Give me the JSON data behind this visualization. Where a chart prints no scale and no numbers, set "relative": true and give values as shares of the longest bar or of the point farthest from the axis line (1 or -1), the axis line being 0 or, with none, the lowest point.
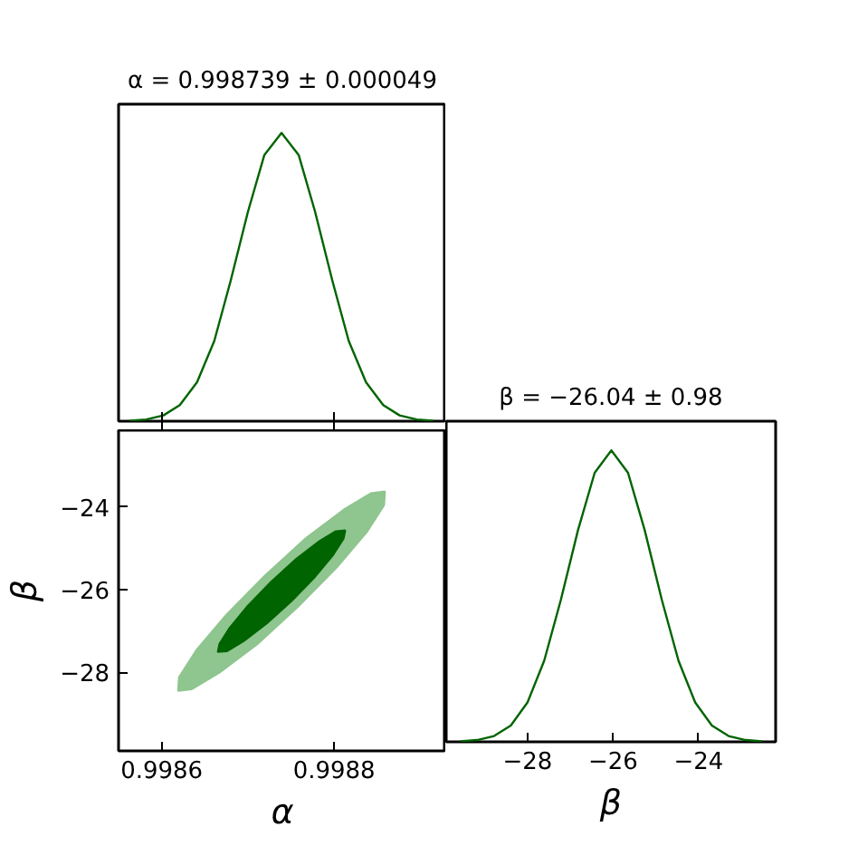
{
  "chart_data": [
    {
      "type": "line",
      "relative": true,
      "title": "α = 0.998739 ± 0.000049",
      "x": [
        0.998563,
        0.998582,
        0.998602,
        0.998621,
        0.998641,
        0.998661,
        0.99868,
        0.9987,
        0.998719,
        0.998739,
        0.998759,
        0.998778,
        0.998798,
        0.998817,
        0.998837,
        0.998857,
        0.998876,
        0.998896,
        0.998915
      ],
      "series": [
        {
          "color": "#006400",
          "values": [
            0.002,
            0.006,
            0.02,
            0.056,
            0.135,
            0.278,
            0.487,
            0.726,
            0.923,
            1,
            0.923,
            0.726,
            0.487,
            0.278,
            0.135,
            0.056,
            0.02,
            0.006,
            0.002
          ]
        }
      ],
      "xlim": [
        0.99855,
        0.99893
      ],
      "xticks": [
        0.9986,
        0.9988
      ],
      "tick_labels": false
    },
    {
      "type": "area",
      "xlabel": "α",
      "ylabel": "β",
      "series": [
        {
          "color": "#8fc58f",
          "x": [
            0.998859,
            0.998858,
            0.998838,
            0.998803,
            0.998758,
            0.998711,
            0.998667,
            0.998635,
            0.998619,
            0.99862,
            0.99864,
            0.998675,
            0.99872,
            0.998767,
            0.998811,
            0.998843
          ],
          "values": [
            -23.63,
            -23.96,
            -24.61,
            -25.47,
            -26.42,
            -27.32,
            -28.01,
            -28.41,
            -28.45,
            -28.12,
            -27.47,
            -26.61,
            -25.66,
            -24.76,
            -24.07,
            -23.67
          ]
        },
        {
          "color": "#006400",
          "x": [
            0.998813,
            0.998811,
            0.998799,
            0.998778,
            0.998751,
            0.998722,
            0.998695,
            0.998676,
            0.998665,
            0.998667,
            0.998679,
            0.9987,
            0.998727,
            0.998756,
            0.998783,
            0.998802
          ],
          "values": [
            -24.57,
            -24.77,
            -25.16,
            -25.69,
            -26.27,
            -26.82,
            -27.25,
            -27.49,
            -27.51,
            -27.31,
            -26.92,
            -26.39,
            -25.81,
            -25.26,
            -24.83,
            -24.59
          ]
        }
      ],
      "xlim": [
        0.99855,
        0.99893
      ],
      "xticks": [
        0.9986,
        0.9988
      ],
      "ylim": [
        -29.9,
        -22.15
      ],
      "yticks": [
        -28,
        -26,
        -24
      ]
    },
    {
      "type": "line",
      "relative": true,
      "title": "β = −26.04 ± 0.98",
      "xlabel": "β",
      "x": [
        -29.57,
        -29.18,
        -28.78,
        -28.39,
        -28.0,
        -27.61,
        -27.22,
        -26.82,
        -26.43,
        -26.04,
        -25.65,
        -25.26,
        -24.86,
        -24.47,
        -24.08,
        -23.69,
        -23.3,
        -22.9,
        -22.51
      ],
      "series": [
        {
          "color": "#006400",
          "values": [
            0.002,
            0.006,
            0.02,
            0.056,
            0.135,
            0.278,
            0.487,
            0.726,
            0.923,
            1,
            0.923,
            0.726,
            0.487,
            0.278,
            0.135,
            0.056,
            0.02,
            0.006,
            0.002
          ]
        }
      ],
      "xlim": [
        -29.9,
        -22.2
      ],
      "xticks": [
        -28,
        -26,
        -24
      ],
      "tick_labels": "x"
    }
  ]
}
